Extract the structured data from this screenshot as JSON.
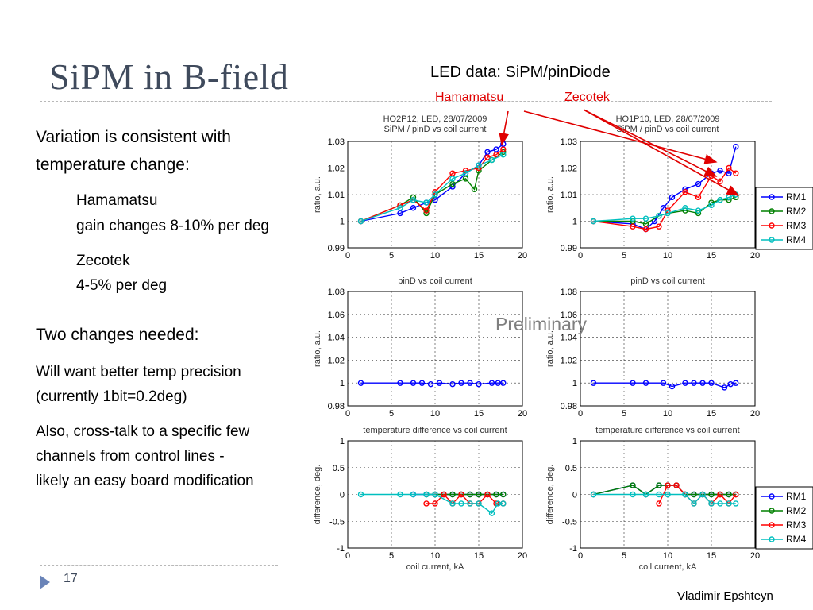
{
  "slide": {
    "title": "SiPM in B-field",
    "led_header": "LED data: SiPM/pinDiode",
    "hamamatsu_label": "Hamamatsu",
    "zecotek_label": "Zecotek",
    "variation_line1": "Variation is consistent with",
    "variation_line2": "temperature change:",
    "ham_name": "Hamamatsu",
    "ham_detail": "gain changes 8-10% per deg",
    "zec_name": "Zecotek",
    "zec_detail": "4-5% per deg",
    "two_changes": "Two changes needed:",
    "temp_line1": "Will want better temp precision",
    "temp_line2": "(currently 1bit=0.2deg)",
    "cross_line1": "Also, cross-talk to a specific few",
    "cross_line2": "channels from control lines -",
    "cross_line3": "likely an easy board modification",
    "preliminary": "Preliminary",
    "page_number": "17",
    "author": "Vladimir Epshteyn"
  },
  "chart_data": [
    {
      "type": "line",
      "title": "HO2P12, LED, 28/07/2009",
      "subtitle": "SiPM / pinD vs coil current",
      "xlabel": "",
      "ylabel": "ratio, a.u.",
      "xlim": [
        0,
        20
      ],
      "ylim": [
        0.99,
        1.03
      ],
      "xticks": [
        0,
        5,
        10,
        15,
        20
      ],
      "yticks": [
        0.99,
        1,
        1.01,
        1.02,
        1.03
      ],
      "ytick_labels": [
        "0.99",
        "1",
        "1.01",
        "1.02",
        "1.03"
      ],
      "grid": true,
      "series": [
        {
          "name": "RM1",
          "color": "#0000ff",
          "x": [
            1.5,
            6,
            7.5,
            9,
            10,
            12,
            13.5,
            15,
            16,
            17,
            17.8
          ],
          "y": [
            1,
            1.003,
            1.005,
            1.007,
            1.008,
            1.013,
            1.018,
            1.021,
            1.026,
            1.027,
            1.029
          ]
        },
        {
          "name": "RM2",
          "color": "#008000",
          "x": [
            1.5,
            6,
            7.5,
            9,
            10,
            12,
            13.5,
            14.5,
            15,
            16.5,
            17.8
          ],
          "y": [
            1,
            1.006,
            1.009,
            1.003,
            1.01,
            1.014,
            1.016,
            1.012,
            1.019,
            1.023,
            1.026
          ]
        },
        {
          "name": "RM3",
          "color": "#ff0000",
          "x": [
            1.5,
            6,
            7.5,
            9,
            10,
            12,
            13.5,
            15,
            16,
            17,
            17.8
          ],
          "y": [
            1,
            1.006,
            1.008,
            1.004,
            1.011,
            1.018,
            1.019,
            1.02,
            1.024,
            1.025,
            1.027
          ]
        },
        {
          "name": "RM4",
          "color": "#00bfbf",
          "x": [
            1.5,
            6,
            7.5,
            9,
            10,
            12,
            13.5,
            15,
            16.5,
            17.8
          ],
          "y": [
            1,
            1.005,
            1.008,
            1.007,
            1.01,
            1.016,
            1.018,
            1.021,
            1.023,
            1.025
          ]
        }
      ]
    },
    {
      "type": "line",
      "title": "HO1P10, LED, 28/07/2009",
      "subtitle": "SiPM / pinD vs coil current",
      "xlabel": "",
      "ylabel": "ratio, a.u.",
      "xlim": [
        0,
        20
      ],
      "ylim": [
        0.99,
        1.03
      ],
      "xticks": [
        0,
        5,
        10,
        15,
        20
      ],
      "yticks": [
        0.99,
        1,
        1.01,
        1.02,
        1.03
      ],
      "ytick_labels": [
        "0.99",
        "1",
        "1.01",
        "1.02",
        "1.03"
      ],
      "grid": true,
      "legend": "right",
      "series": [
        {
          "name": "RM1",
          "color": "#0000ff",
          "x": [
            1.5,
            6,
            7.5,
            8.5,
            9.5,
            10.5,
            12,
            13.5,
            15,
            16,
            17,
            17.8
          ],
          "y": [
            1,
            0.999,
            0.997,
            1,
            1.005,
            1.009,
            1.012,
            1.014,
            1.018,
            1.019,
            1.018,
            1.028
          ]
        },
        {
          "name": "RM2",
          "color": "#008000",
          "x": [
            1.5,
            6,
            7.5,
            9,
            10,
            12,
            13.5,
            15,
            16,
            17,
            17.8
          ],
          "y": [
            1,
            1,
            0.999,
            1.002,
            1.003,
            1.004,
            1.003,
            1.007,
            1.008,
            1.008,
            1.009
          ]
        },
        {
          "name": "RM3",
          "color": "#ff0000",
          "x": [
            1.5,
            6,
            7.5,
            9,
            10,
            12,
            13.5,
            15,
            16,
            17,
            17.8
          ],
          "y": [
            1,
            0.998,
            0.997,
            0.998,
            1.004,
            1.011,
            1.009,
            1.017,
            1.015,
            1.02,
            1.018
          ]
        },
        {
          "name": "RM4",
          "color": "#00bfbf",
          "x": [
            1.5,
            6,
            7.5,
            9,
            10,
            12,
            13.5,
            15,
            16,
            17,
            17.8
          ],
          "y": [
            1,
            1.001,
            1.001,
            1.002,
            1.003,
            1.005,
            1.004,
            1.006,
            1.008,
            1.009,
            1.01
          ]
        }
      ]
    },
    {
      "type": "line",
      "title": "pinD vs coil current",
      "ylabel": "ratio, a.u.",
      "xlim": [
        0,
        20
      ],
      "ylim": [
        0.98,
        1.08
      ],
      "xticks": [
        0,
        5,
        10,
        15,
        20
      ],
      "yticks": [
        0.98,
        1,
        1.02,
        1.04,
        1.06,
        1.08
      ],
      "ytick_labels": [
        "0.98",
        "1",
        "1.02",
        "1.04",
        "1.06",
        "1.08"
      ],
      "grid": true,
      "series": [
        {
          "name": "pinD",
          "color": "#0000ff",
          "x": [
            1.5,
            6,
            7.5,
            8.5,
            9.5,
            10.5,
            12,
            13,
            14,
            15,
            16.5,
            17.2,
            17.8
          ],
          "y": [
            1,
            1,
            1,
            1,
            0.999,
            1,
            0.999,
            1,
            1,
            0.999,
            1,
            1,
            1
          ]
        }
      ]
    },
    {
      "type": "line",
      "title": "pinD vs coil current",
      "ylabel": "ratio, a.u.",
      "xlim": [
        0,
        20
      ],
      "ylim": [
        0.98,
        1.08
      ],
      "xticks": [
        0,
        5,
        10,
        15,
        20
      ],
      "yticks": [
        0.98,
        1,
        1.02,
        1.04,
        1.06,
        1.08
      ],
      "ytick_labels": [
        "0.98",
        "1",
        "1.02",
        "1.04",
        "1.06",
        "1.08"
      ],
      "grid": true,
      "series": [
        {
          "name": "pinD",
          "color": "#0000ff",
          "x": [
            1.5,
            6,
            7.5,
            9.5,
            10.5,
            12,
            13,
            14,
            15,
            16.5,
            17.2,
            17.8
          ],
          "y": [
            1,
            1,
            1,
            1,
            0.997,
            1,
            1,
            1,
            1,
            0.996,
            0.999,
            1
          ]
        }
      ]
    },
    {
      "type": "line",
      "title": "temperature difference vs coil current",
      "xlabel": "coil current, kA",
      "ylabel": "difference, deg.",
      "xlim": [
        0,
        20
      ],
      "ylim": [
        -1,
        1
      ],
      "xticks": [
        0,
        5,
        10,
        15,
        20
      ],
      "yticks": [
        -1,
        -0.5,
        0,
        0.5,
        1
      ],
      "ytick_labels": [
        "-1",
        "-0.5",
        "0",
        "0.5",
        "1"
      ],
      "grid": true,
      "series": [
        {
          "name": "RM1",
          "color": "#0000ff",
          "x": [
            7.5,
            9,
            10,
            11,
            12,
            13,
            14,
            15,
            16,
            17,
            17.8
          ],
          "y": [
            0,
            0,
            0,
            0,
            0,
            0,
            0,
            0,
            0,
            0,
            0
          ]
        },
        {
          "name": "RM2",
          "color": "#008000",
          "x": [
            9,
            10,
            11,
            12,
            13,
            14,
            15,
            16,
            17,
            17.8
          ],
          "y": [
            0,
            0,
            0,
            0,
            0,
            0,
            0,
            0,
            0,
            0
          ]
        },
        {
          "name": "RM3",
          "color": "#ff0000",
          "x": [
            9,
            10,
            11,
            12,
            13,
            14,
            15,
            16,
            17,
            17.8
          ],
          "y": [
            -0.17,
            -0.17,
            0,
            -0.17,
            0,
            -0.17,
            -0.17,
            0,
            -0.17,
            -0.17
          ]
        },
        {
          "name": "RM4",
          "color": "#00bfbf",
          "x": [
            1.5,
            6,
            7.5,
            9,
            10,
            12,
            13,
            14,
            15,
            16.5,
            17.2,
            17.8
          ],
          "y": [
            0,
            0,
            0,
            0,
            0,
            -0.17,
            -0.17,
            -0.17,
            -0.17,
            -0.35,
            -0.17,
            -0.17
          ]
        }
      ]
    },
    {
      "type": "line",
      "title": "temperature difference vs coil current",
      "xlabel": "coil current, kA",
      "ylabel": "difference, deg.",
      "xlim": [
        0,
        20
      ],
      "ylim": [
        -1,
        1
      ],
      "xticks": [
        0,
        5,
        10,
        15,
        20
      ],
      "yticks": [
        -1,
        -0.5,
        0,
        0.5,
        1
      ],
      "ytick_labels": [
        "-1",
        "-0.5",
        "0",
        "0.5",
        "1"
      ],
      "grid": true,
      "legend": "right",
      "series": [
        {
          "name": "RM1",
          "color": "#0000ff",
          "x": [
            1.5,
            6,
            7.5,
            9,
            10,
            11,
            12,
            13,
            14,
            15,
            16,
            17,
            17.8
          ],
          "y": [
            0,
            0.17,
            0,
            0.17,
            0.17,
            0.17,
            0,
            0,
            0,
            0,
            0,
            0,
            0
          ]
        },
        {
          "name": "RM2",
          "color": "#008000",
          "x": [
            1.5,
            6,
            7.5,
            9,
            10,
            11,
            12,
            13,
            14,
            15,
            16,
            17,
            17.8
          ],
          "y": [
            0,
            0.17,
            0,
            0.17,
            0.17,
            0.17,
            0,
            0,
            0,
            0,
            0,
            0,
            0
          ]
        },
        {
          "name": "RM3",
          "color": "#ff0000",
          "x": [
            9,
            10,
            11,
            12,
            13,
            14,
            15,
            16,
            17,
            17.8
          ],
          "y": [
            -0.17,
            0.17,
            0.17,
            0,
            -0.17,
            0,
            -0.17,
            0,
            -0.17,
            0
          ]
        },
        {
          "name": "RM4",
          "color": "#00bfbf",
          "x": [
            1.5,
            6,
            7.5,
            9,
            10,
            12,
            13,
            14,
            15,
            16,
            17,
            17.8
          ],
          "y": [
            0,
            0,
            0,
            0,
            0,
            0,
            -0.17,
            0,
            -0.17,
            -0.17,
            -0.17,
            -0.17
          ]
        }
      ]
    }
  ]
}
